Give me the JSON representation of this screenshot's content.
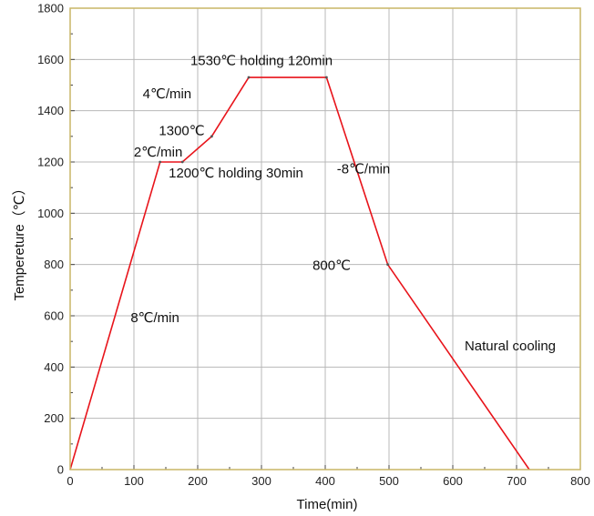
{
  "chart_data": {
    "type": "line",
    "xlabel": "Time(min)",
    "ylabel": "Tempereture（℃）",
    "xlim": [
      0,
      800
    ],
    "ylim": [
      0,
      1800
    ],
    "x_ticks": [
      0,
      100,
      200,
      300,
      400,
      500,
      600,
      700,
      800
    ],
    "y_ticks": [
      0,
      200,
      400,
      600,
      800,
      1000,
      1200,
      1400,
      1600,
      1800
    ],
    "grid": true,
    "series": [
      {
        "color": "#e8141b",
        "x": [
          0,
          141,
          176,
          222,
          280,
          402,
          498,
          720
        ],
        "y": [
          0,
          1200,
          1200,
          1300,
          1530,
          1530,
          800,
          0
        ]
      }
    ],
    "annotations": [
      {
        "text": "1530℃ holding 120min",
        "x": 300,
        "y": 1578
      },
      {
        "text": "4℃/min",
        "x": 152,
        "y": 1448
      },
      {
        "text": "1300℃",
        "x": 175,
        "y": 1305
      },
      {
        "text": "2℃/min",
        "x": 138,
        "y": 1222
      },
      {
        "text": "1200℃ holding 30min",
        "x": 260,
        "y": 1140
      },
      {
        "text": "-8℃/min",
        "x": 460,
        "y": 1155
      },
      {
        "text": "800℃",
        "x": 410,
        "y": 780
      },
      {
        "text": "8℃/min",
        "x": 133,
        "y": 575
      },
      {
        "text": "Natural cooling",
        "x": 690,
        "y": 465
      }
    ]
  },
  "style": {
    "frame_color": "#c9b566",
    "grid_color": "#b8b8b8"
  }
}
